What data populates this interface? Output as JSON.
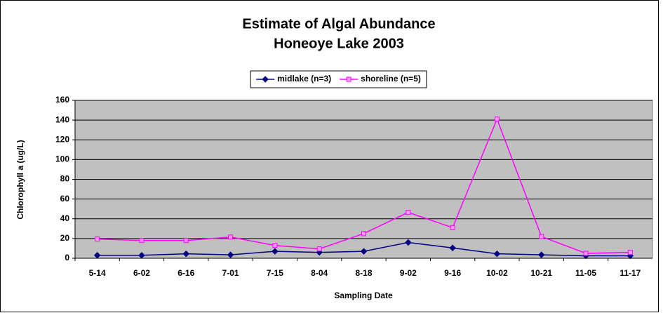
{
  "chart_data": {
    "type": "line",
    "title": "Estimate of Algal Abundance",
    "subtitle": "Honeoye Lake 2003",
    "x_label": "Sampling Date",
    "y_label": "Chlorophyll a (ug/L)",
    "categories": [
      "5-14",
      "6-02",
      "6-16",
      "7-01",
      "7-15",
      "8-04",
      "8-18",
      "9-02",
      "9-16",
      "10-02",
      "10-21",
      "11-05",
      "11-17"
    ],
    "series": [
      {
        "name": "midlake (n=3)",
        "color": "#000080",
        "marker": "diamond",
        "values": [
          3,
          3,
          4.5,
          3.5,
          7,
          6,
          7,
          16,
          10.5,
          4.5,
          3.5,
          2.5,
          2.5
        ]
      },
      {
        "name": "shoreline (n=5)",
        "color": "#ff00ff",
        "marker": "square",
        "values": [
          19.5,
          18,
          18,
          21.5,
          13,
          9.5,
          25,
          46.5,
          31,
          141,
          22,
          5,
          6
        ]
      }
    ],
    "ylim": [
      0,
      160
    ],
    "yticks": [
      0,
      20,
      40,
      60,
      80,
      100,
      120,
      140,
      160
    ],
    "grid": true,
    "legend": "top",
    "plot_background": "#c0c0c0"
  }
}
